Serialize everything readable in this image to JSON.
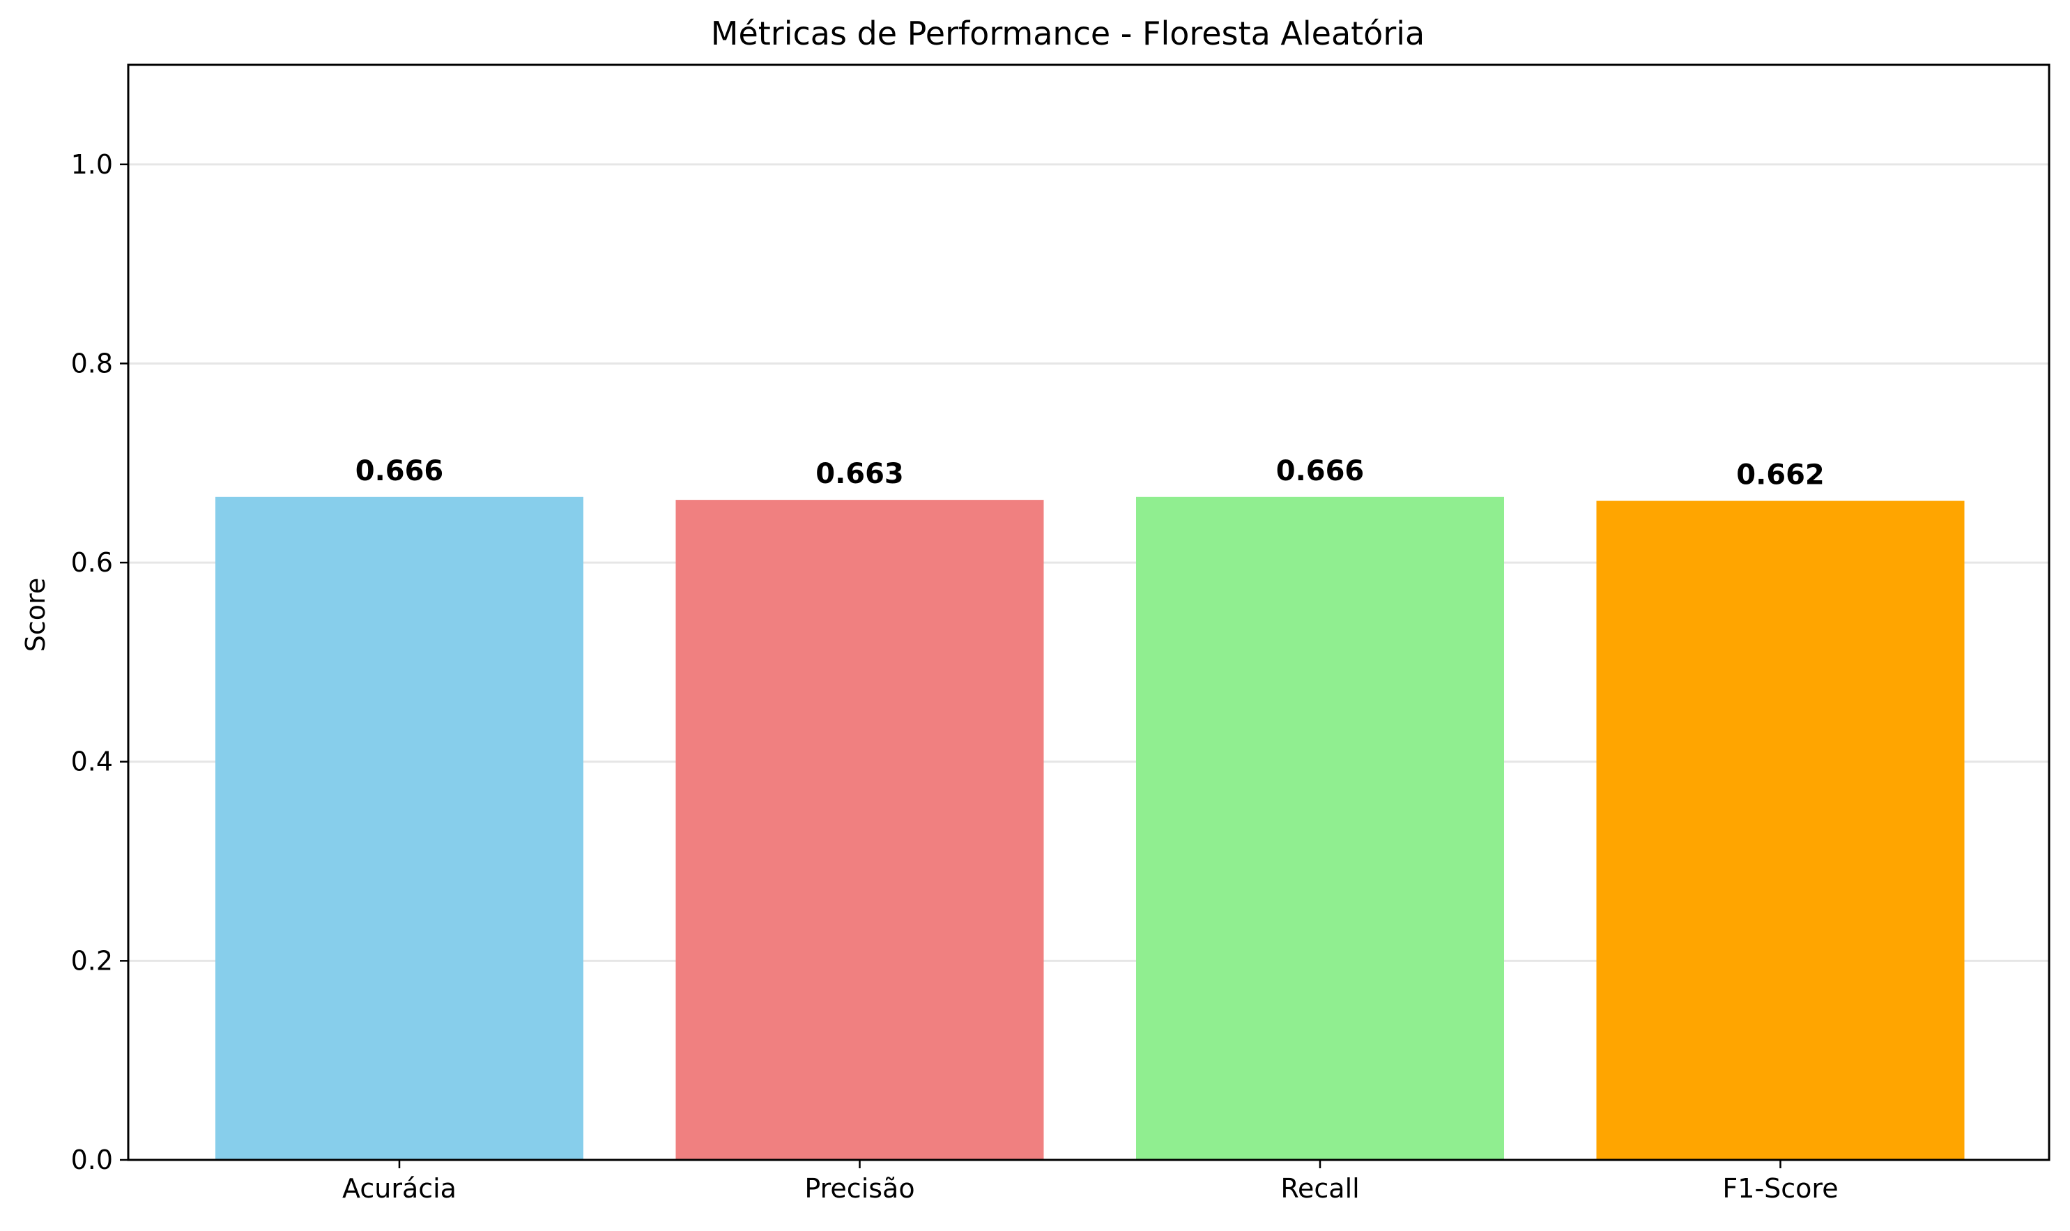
{
  "chart_data": {
    "type": "bar",
    "title": "Métricas de Performance - Floresta Aleatória",
    "xlabel": "",
    "ylabel": "Score",
    "categories": [
      "Acurácia",
      "Precisão",
      "Recall",
      "F1-Score"
    ],
    "values": [
      0.666,
      0.663,
      0.666,
      0.662
    ],
    "value_labels": [
      "0.666",
      "0.663",
      "0.666",
      "0.662"
    ],
    "colors": [
      "#87ceeb",
      "#f08080",
      "#90ee90",
      "#ffa500"
    ],
    "ylim": [
      0,
      1.1
    ],
    "yticks": [
      0.0,
      0.2,
      0.4,
      0.6,
      0.8,
      1.0
    ],
    "ytick_labels": [
      "0.0",
      "0.2",
      "0.4",
      "0.6",
      "0.8",
      "1.0"
    ],
    "grid": "y-axis",
    "legend": "none"
  }
}
